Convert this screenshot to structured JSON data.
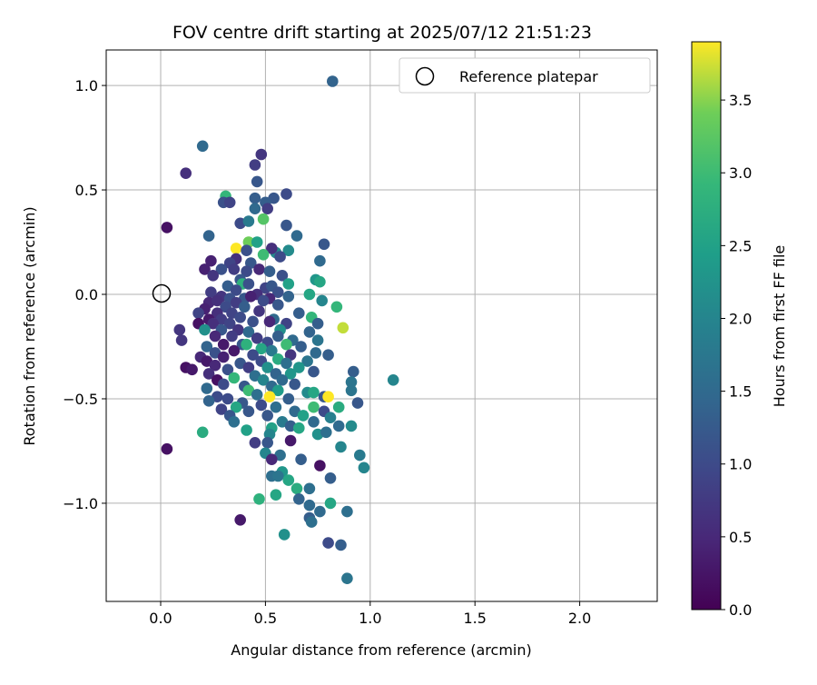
{
  "chart_data": {
    "type": "scatter",
    "title": "FOV centre drift starting at 2025/07/12 21:51:23",
    "xlabel": "Angular distance from reference (arcmin)",
    "ylabel": "Rotation from reference (arcmin)",
    "xlim": [
      -0.26,
      2.37
    ],
    "ylim": [
      -1.47,
      1.17
    ],
    "xticks": [
      0.0,
      0.5,
      1.0,
      1.5,
      2.0
    ],
    "xtick_labels": [
      "0.0",
      "0.5",
      "1.0",
      "1.5",
      "2.0"
    ],
    "yticks": [
      -1.0,
      -0.5,
      0.0,
      0.5,
      1.0
    ],
    "ytick_labels": [
      "−1.0",
      "−0.5",
      "0.0",
      "0.5",
      "1.0"
    ],
    "grid": true,
    "legend": {
      "placement": "top-right",
      "entries": [
        "Reference platepar"
      ]
    },
    "colorbar": {
      "label": "Hours from first FF file",
      "min": 0.0,
      "max": 3.9,
      "ticks": [
        0.0,
        0.5,
        1.0,
        1.5,
        2.0,
        2.5,
        3.0,
        3.5
      ],
      "tick_labels": [
        "0.0",
        "0.5",
        "1.0",
        "1.5",
        "2.0",
        "2.5",
        "3.0",
        "3.5"
      ],
      "colormap": "viridis"
    },
    "reference_point": {
      "x": 0.0,
      "y": 0.0,
      "name": "Reference platepar"
    },
    "series": [
      {
        "points": [
          [
            0.82,
            1.02,
            1.4
          ],
          [
            0.2,
            0.71,
            1.5
          ],
          [
            0.12,
            0.58,
            0.6
          ],
          [
            0.48,
            0.67,
            0.7
          ],
          [
            0.45,
            0.62,
            0.8
          ],
          [
            0.46,
            0.54,
            1.2
          ],
          [
            0.6,
            0.48,
            1.0
          ],
          [
            0.31,
            0.47,
            2.9
          ],
          [
            0.45,
            0.46,
            1.3
          ],
          [
            0.54,
            0.46,
            1.2
          ],
          [
            0.3,
            0.44,
            1.1
          ],
          [
            0.33,
            0.44,
            0.9
          ],
          [
            0.5,
            0.44,
            1.3
          ],
          [
            0.45,
            0.41,
            1.5
          ],
          [
            0.51,
            0.41,
            0.8
          ],
          [
            0.49,
            0.36,
            3.2
          ],
          [
            0.38,
            0.34,
            1.0
          ],
          [
            0.42,
            0.35,
            1.8
          ],
          [
            0.6,
            0.33,
            1.2
          ],
          [
            0.03,
            0.32,
            0.2
          ],
          [
            0.65,
            0.28,
            1.5
          ],
          [
            0.23,
            0.28,
            1.4
          ],
          [
            0.42,
            0.25,
            3.4
          ],
          [
            0.46,
            0.25,
            2.5
          ],
          [
            0.36,
            0.22,
            3.9
          ],
          [
            0.41,
            0.21,
            1.1
          ],
          [
            0.55,
            0.2,
            2.1
          ],
          [
            0.61,
            0.21,
            2.1
          ],
          [
            0.53,
            0.22,
            0.6
          ],
          [
            0.78,
            0.24,
            1.2
          ],
          [
            0.49,
            0.19,
            3.0
          ],
          [
            0.57,
            0.18,
            1.0
          ],
          [
            0.36,
            0.17,
            0.6
          ],
          [
            0.24,
            0.16,
            0.4
          ],
          [
            0.33,
            0.15,
            0.9
          ],
          [
            0.43,
            0.15,
            1.2
          ],
          [
            0.76,
            0.16,
            1.5
          ],
          [
            0.21,
            0.12,
            0.4
          ],
          [
            0.29,
            0.12,
            1.1
          ],
          [
            0.35,
            0.12,
            0.8
          ],
          [
            0.41,
            0.11,
            1.0
          ],
          [
            0.47,
            0.12,
            0.5
          ],
          [
            0.52,
            0.11,
            1.3
          ],
          [
            0.25,
            0.09,
            0.7
          ],
          [
            0.58,
            0.09,
            1.1
          ],
          [
            0.38,
            0.07,
            1.2
          ],
          [
            0.74,
            0.07,
            2.3
          ],
          [
            0.76,
            0.06,
            2.6
          ],
          [
            0.39,
            0.05,
            2.8
          ],
          [
            0.42,
            0.05,
            1.1
          ],
          [
            0.32,
            0.04,
            1.3
          ],
          [
            0.36,
            0.02,
            1.0
          ],
          [
            0.5,
            0.03,
            0.9
          ],
          [
            0.53,
            0.04,
            1.2
          ],
          [
            0.61,
            0.05,
            2.5
          ],
          [
            0.56,
            0.01,
            1.1
          ],
          [
            0.24,
            0.01,
            0.8
          ],
          [
            0.46,
            0.0,
            0.6
          ],
          [
            0.71,
            0.0,
            2.6
          ],
          [
            0.29,
            -0.01,
            0.7
          ],
          [
            0.33,
            -0.02,
            1.1
          ],
          [
            0.4,
            -0.02,
            1.2
          ],
          [
            0.43,
            -0.01,
            0.4
          ],
          [
            0.52,
            -0.02,
            0.5
          ],
          [
            0.61,
            -0.01,
            1.4
          ],
          [
            0.23,
            -0.04,
            0.5
          ],
          [
            0.27,
            -0.03,
            0.6
          ],
          [
            0.36,
            -0.04,
            0.8
          ],
          [
            0.49,
            -0.03,
            1.0
          ],
          [
            0.77,
            -0.03,
            2.0
          ],
          [
            0.21,
            -0.07,
            0.4
          ],
          [
            0.31,
            -0.06,
            1.0
          ],
          [
            0.4,
            -0.06,
            1.3
          ],
          [
            0.84,
            -0.06,
            2.9
          ],
          [
            0.56,
            -0.05,
            1.2
          ],
          [
            0.18,
            -0.09,
            0.9
          ],
          [
            0.27,
            -0.09,
            0.6
          ],
          [
            0.34,
            -0.09,
            0.9
          ],
          [
            0.47,
            -0.08,
            0.7
          ],
          [
            0.66,
            -0.09,
            1.3
          ],
          [
            0.23,
            -0.12,
            0.3
          ],
          [
            0.29,
            -0.12,
            0.8
          ],
          [
            0.38,
            -0.11,
            1.0
          ],
          [
            0.54,
            -0.12,
            1.5
          ],
          [
            0.72,
            -0.11,
            2.9
          ],
          [
            0.18,
            -0.14,
            0.2
          ],
          [
            0.25,
            -0.14,
            0.6
          ],
          [
            0.33,
            -0.14,
            0.9
          ],
          [
            0.44,
            -0.13,
            1.1
          ],
          [
            0.6,
            -0.14,
            0.9
          ],
          [
            0.52,
            -0.13,
            0.5
          ],
          [
            0.75,
            -0.14,
            1.3
          ],
          [
            0.87,
            -0.16,
            3.7
          ],
          [
            0.09,
            -0.17,
            0.7
          ],
          [
            0.21,
            -0.17,
            2.2
          ],
          [
            0.29,
            -0.17,
            1.2
          ],
          [
            0.37,
            -0.17,
            0.7
          ],
          [
            0.42,
            -0.18,
            1.5
          ],
          [
            0.57,
            -0.17,
            2.2
          ],
          [
            0.71,
            -0.18,
            1.4
          ],
          [
            0.26,
            -0.2,
            0.5
          ],
          [
            0.34,
            -0.2,
            0.8
          ],
          [
            0.46,
            -0.21,
            0.8
          ],
          [
            0.56,
            -0.2,
            1.3
          ],
          [
            0.1,
            -0.22,
            0.7
          ],
          [
            0.63,
            -0.22,
            1.5
          ],
          [
            0.75,
            -0.22,
            1.7
          ],
          [
            0.3,
            -0.24,
            0.3
          ],
          [
            0.39,
            -0.24,
            1.2
          ],
          [
            0.41,
            -0.24,
            2.8
          ],
          [
            0.51,
            -0.23,
            1.0
          ],
          [
            0.6,
            -0.24,
            3.0
          ],
          [
            0.67,
            -0.25,
            1.3
          ],
          [
            0.22,
            -0.25,
            1.4
          ],
          [
            0.48,
            -0.26,
            2.6
          ],
          [
            0.35,
            -0.27,
            0.3
          ],
          [
            0.53,
            -0.27,
            1.8
          ],
          [
            0.26,
            -0.28,
            1.1
          ],
          [
            0.74,
            -0.28,
            1.5
          ],
          [
            0.44,
            -0.29,
            1.0
          ],
          [
            0.62,
            -0.29,
            0.7
          ],
          [
            0.19,
            -0.3,
            0.5
          ],
          [
            0.3,
            -0.3,
            0.4
          ],
          [
            0.56,
            -0.31,
            2.7
          ],
          [
            0.22,
            -0.32,
            0.3
          ],
          [
            0.38,
            -0.33,
            1.2
          ],
          [
            0.48,
            -0.32,
            1.0
          ],
          [
            0.7,
            -0.32,
            1.7
          ],
          [
            0.8,
            -0.29,
            1.3
          ],
          [
            0.6,
            -0.33,
            1.6
          ],
          [
            0.26,
            -0.34,
            0.5
          ],
          [
            0.42,
            -0.35,
            0.8
          ],
          [
            0.51,
            -0.35,
            2.2
          ],
          [
            0.66,
            -0.35,
            2.3
          ],
          [
            0.12,
            -0.35,
            0.2
          ],
          [
            0.15,
            -0.36,
            0.3
          ],
          [
            0.32,
            -0.36,
            1.1
          ],
          [
            0.73,
            -0.37,
            1.2
          ],
          [
            0.92,
            -0.37,
            1.3
          ],
          [
            0.23,
            -0.38,
            0.6
          ],
          [
            0.55,
            -0.38,
            1.4
          ],
          [
            0.62,
            -0.38,
            2.3
          ],
          [
            0.35,
            -0.4,
            2.9
          ],
          [
            0.45,
            -0.39,
            1.6
          ],
          [
            0.27,
            -0.41,
            0.2
          ],
          [
            0.49,
            -0.41,
            2.0
          ],
          [
            0.58,
            -0.41,
            1.5
          ],
          [
            1.11,
            -0.41,
            2.0
          ],
          [
            0.91,
            -0.42,
            1.7
          ],
          [
            0.3,
            -0.43,
            1.0
          ],
          [
            0.4,
            -0.44,
            1.2
          ],
          [
            0.53,
            -0.44,
            1.5
          ],
          [
            0.64,
            -0.43,
            1.2
          ],
          [
            0.22,
            -0.45,
            1.5
          ],
          [
            0.42,
            -0.46,
            3.0
          ],
          [
            0.56,
            -0.46,
            2.4
          ],
          [
            0.7,
            -0.47,
            2.1
          ],
          [
            0.73,
            -0.47,
            2.6
          ],
          [
            0.91,
            -0.46,
            1.7
          ],
          [
            0.46,
            -0.48,
            1.6
          ],
          [
            0.27,
            -0.49,
            1.0
          ],
          [
            0.52,
            -0.49,
            3.9
          ],
          [
            0.32,
            -0.5,
            1.0
          ],
          [
            0.61,
            -0.5,
            1.3
          ],
          [
            0.78,
            -0.49,
            1.2
          ],
          [
            0.8,
            -0.49,
            3.9
          ],
          [
            0.23,
            -0.51,
            1.4
          ],
          [
            0.39,
            -0.52,
            1.2
          ],
          [
            0.48,
            -0.53,
            1.0
          ],
          [
            0.94,
            -0.52,
            1.2
          ],
          [
            0.29,
            -0.55,
            0.9
          ],
          [
            0.36,
            -0.54,
            2.6
          ],
          [
            0.55,
            -0.54,
            1.6
          ],
          [
            0.73,
            -0.54,
            3.0
          ],
          [
            0.85,
            -0.54,
            2.7
          ],
          [
            0.42,
            -0.56,
            1.2
          ],
          [
            0.64,
            -0.56,
            1.5
          ],
          [
            0.78,
            -0.56,
            1.0
          ],
          [
            0.33,
            -0.58,
            1.2
          ],
          [
            0.51,
            -0.58,
            1.2
          ],
          [
            0.68,
            -0.58,
            2.5
          ],
          [
            0.81,
            -0.59,
            1.9
          ],
          [
            0.35,
            -0.61,
            1.6
          ],
          [
            0.58,
            -0.61,
            1.8
          ],
          [
            0.73,
            -0.61,
            1.5
          ],
          [
            0.62,
            -0.63,
            1.3
          ],
          [
            0.66,
            -0.64,
            2.6
          ],
          [
            0.53,
            -0.64,
            2.5
          ],
          [
            0.41,
            -0.65,
            2.5
          ],
          [
            0.85,
            -0.63,
            1.5
          ],
          [
            0.91,
            -0.63,
            2.1
          ],
          [
            0.2,
            -0.66,
            2.7
          ],
          [
            0.52,
            -0.67,
            2.0
          ],
          [
            0.75,
            -0.67,
            2.2
          ],
          [
            0.79,
            -0.66,
            1.6
          ],
          [
            0.62,
            -0.7,
            0.3
          ],
          [
            0.45,
            -0.71,
            0.8
          ],
          [
            0.51,
            -0.71,
            1.2
          ],
          [
            0.86,
            -0.73,
            2.0
          ],
          [
            0.03,
            -0.74,
            0.2
          ],
          [
            0.5,
            -0.76,
            2.0
          ],
          [
            0.57,
            -0.77,
            1.6
          ],
          [
            0.95,
            -0.77,
            1.8
          ],
          [
            0.53,
            -0.79,
            0.5
          ],
          [
            0.67,
            -0.79,
            1.3
          ],
          [
            0.76,
            -0.82,
            0.2
          ],
          [
            0.97,
            -0.83,
            2.0
          ],
          [
            0.58,
            -0.85,
            2.3
          ],
          [
            0.53,
            -0.87,
            1.6
          ],
          [
            0.56,
            -0.87,
            1.7
          ],
          [
            0.81,
            -0.88,
            1.3
          ],
          [
            0.61,
            -0.89,
            2.6
          ],
          [
            0.65,
            -0.93,
            2.7
          ],
          [
            0.71,
            -0.93,
            1.6
          ],
          [
            0.55,
            -0.96,
            2.6
          ],
          [
            0.47,
            -0.98,
            2.8
          ],
          [
            0.66,
            -0.98,
            1.4
          ],
          [
            0.71,
            -1.01,
            1.5
          ],
          [
            0.81,
            -1.0,
            2.6
          ],
          [
            0.76,
            -1.04,
            1.5
          ],
          [
            0.89,
            -1.04,
            1.6
          ],
          [
            0.59,
            -1.15,
            2.2
          ],
          [
            0.38,
            -1.08,
            0.3
          ],
          [
            0.71,
            -1.07,
            1.3
          ],
          [
            0.72,
            -1.09,
            1.6
          ],
          [
            0.8,
            -1.19,
            1.0
          ],
          [
            0.86,
            -1.2,
            1.3
          ],
          [
            0.89,
            -1.36,
            1.7
          ]
        ]
      }
    ]
  }
}
